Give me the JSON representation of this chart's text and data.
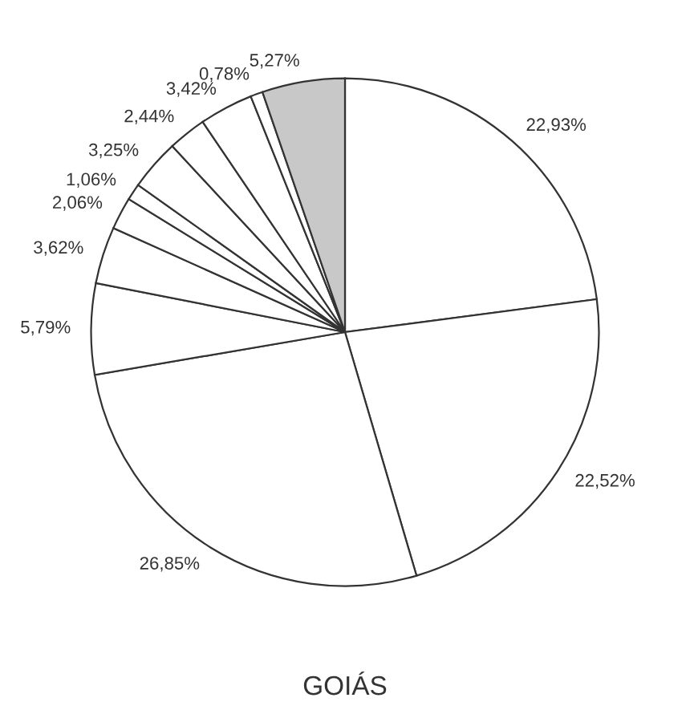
{
  "chart_data": {
    "type": "pie",
    "title": "GOIÁS",
    "categories": [
      null,
      null,
      null,
      null,
      null,
      null,
      null,
      null,
      null,
      null,
      null,
      null
    ],
    "values": [
      22.93,
      22.52,
      26.85,
      5.79,
      3.62,
      2.06,
      1.06,
      3.25,
      2.44,
      3.42,
      0.78,
      5.27
    ],
    "value_labels": [
      "22,93%",
      "22,52%",
      "26,85%",
      "5,79%",
      "3,62%",
      "2,06%",
      "1,06%",
      "3,25%",
      "2,44%",
      "3,42%",
      "0,78%",
      "5,27%"
    ],
    "colors": [
      "#ffffff",
      "#ffffff",
      "#ffffff",
      "#ffffff",
      "#ffffff",
      "#ffffff",
      "#ffffff",
      "#ffffff",
      "#ffffff",
      "#ffffff",
      "#ffffff",
      "#c8c8c8"
    ],
    "legend": false
  }
}
